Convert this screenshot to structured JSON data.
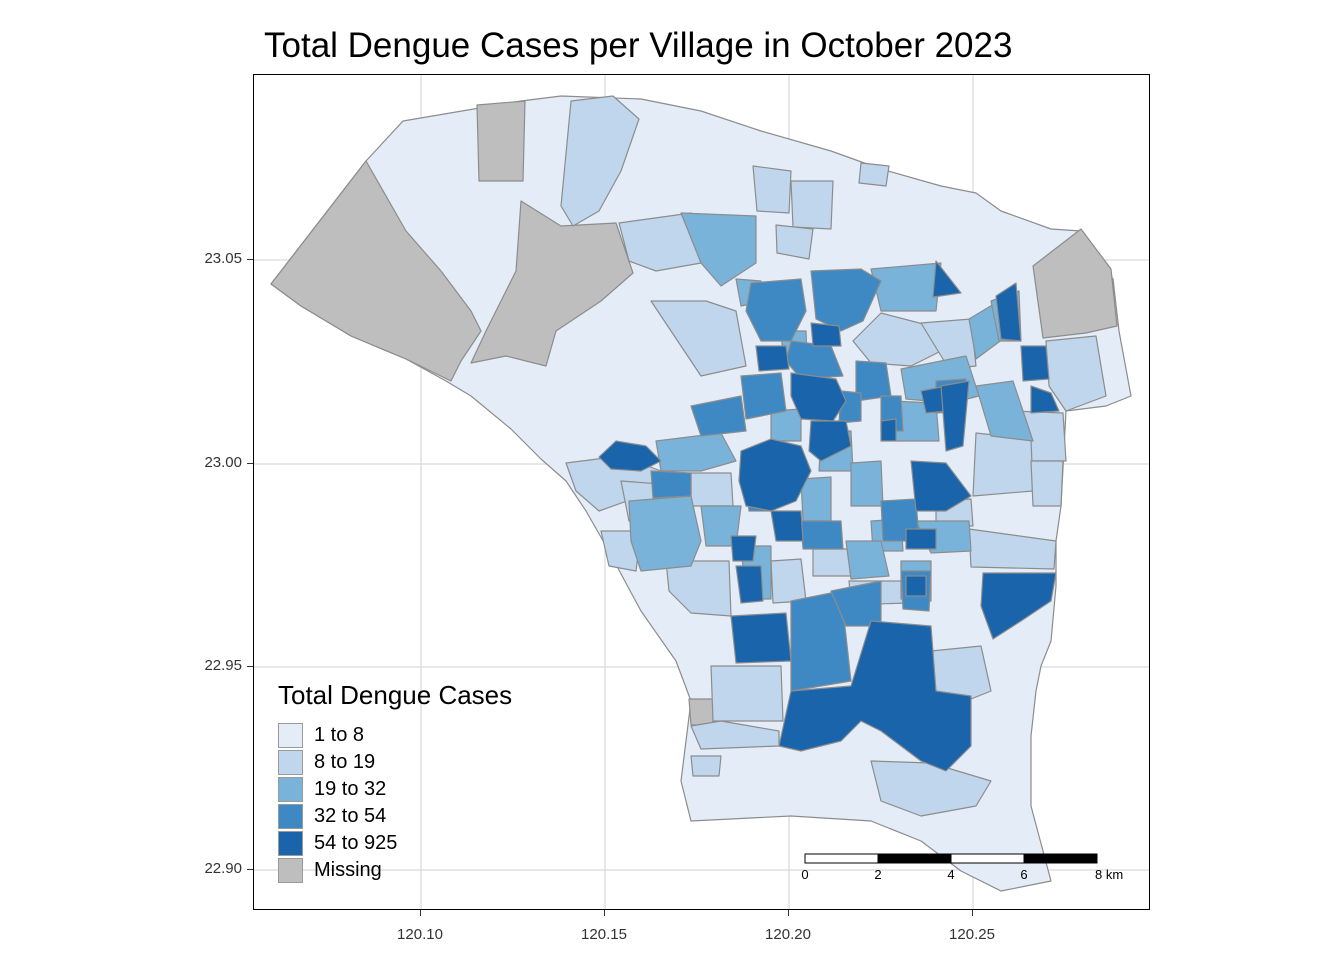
{
  "title": "Total Dengue Cases per Village in October 2023",
  "axes": {
    "x_ticks": [
      "120.10",
      "120.15",
      "120.20",
      "120.25"
    ],
    "y_ticks": [
      "23.05",
      "23.00",
      "22.95",
      "22.90"
    ],
    "xlim": [
      120.06,
      120.295
    ],
    "ylim": [
      22.89,
      23.095
    ]
  },
  "legend": {
    "title": "Total Dengue Cases",
    "items": [
      {
        "label": "1 to 8",
        "color": "#e4edf7"
      },
      {
        "label": "8 to 19",
        "color": "#bfd6ec"
      },
      {
        "label": "19 to 32",
        "color": "#7ab3d9"
      },
      {
        "label": "32 to 54",
        "color": "#3e89c4"
      },
      {
        "label": "54 to 925",
        "color": "#1964ab"
      },
      {
        "label": "Missing",
        "color": "#bebebe"
      }
    ]
  },
  "scale_bar": {
    "labels": [
      "0",
      "2",
      "4",
      "6",
      "8 km"
    ]
  },
  "colors": {
    "boundary": "#8c8c8c",
    "grid": "#d9d9d9"
  }
}
